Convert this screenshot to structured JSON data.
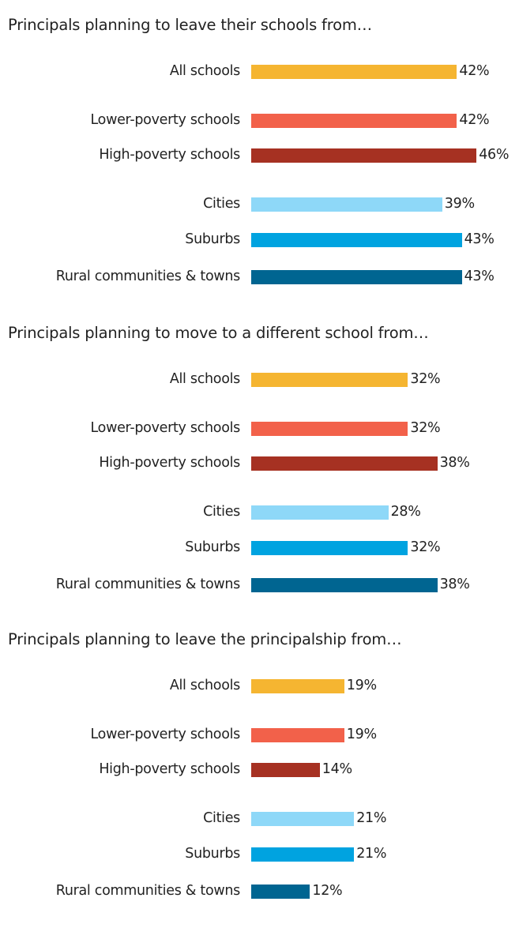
{
  "colors": {
    "All schools": "#F5B531",
    "Lower-poverty schools": "#F2614A",
    "High-poverty schools": "#A63122",
    "Cities": "#8ED8F8",
    "Suburbs": "#00A3E0",
    "Rural communities & towns": "#006591"
  },
  "chart_data": [
    {
      "type": "bar",
      "orientation": "horizontal",
      "title": "Principals planning to leave their schools from…",
      "categories": [
        "All schools",
        "Lower-poverty schools",
        "High-poverty schools",
        "Cities",
        "Suburbs",
        "Rural communities & towns"
      ],
      "values": [
        42,
        42,
        46,
        39,
        43,
        43
      ],
      "value_labels": [
        "42%",
        "42%",
        "46%",
        "39%",
        "43%",
        "43%"
      ],
      "unit": "%",
      "grid": false
    },
    {
      "type": "bar",
      "orientation": "horizontal",
      "title": "Principals planning to move to a different school from…",
      "categories": [
        "All schools",
        "Lower-poverty schools",
        "High-poverty schools",
        "Cities",
        "Suburbs",
        "Rural communities & towns"
      ],
      "values": [
        32,
        32,
        38,
        28,
        32,
        38
      ],
      "value_labels": [
        "32%",
        "32%",
        "38%",
        "28%",
        "32%",
        "38%"
      ],
      "unit": "%",
      "grid": false
    },
    {
      "type": "bar",
      "orientation": "horizontal",
      "title": "Principals planning to leave the principalship from…",
      "categories": [
        "All schools",
        "Lower-poverty schools",
        "High-poverty schools",
        "Cities",
        "Suburbs",
        "Rural communities & towns"
      ],
      "values": [
        19,
        19,
        14,
        21,
        21,
        12
      ],
      "value_labels": [
        "19%",
        "19%",
        "14%",
        "21%",
        "21%",
        "12%"
      ],
      "unit": "%",
      "grid": false
    }
  ]
}
